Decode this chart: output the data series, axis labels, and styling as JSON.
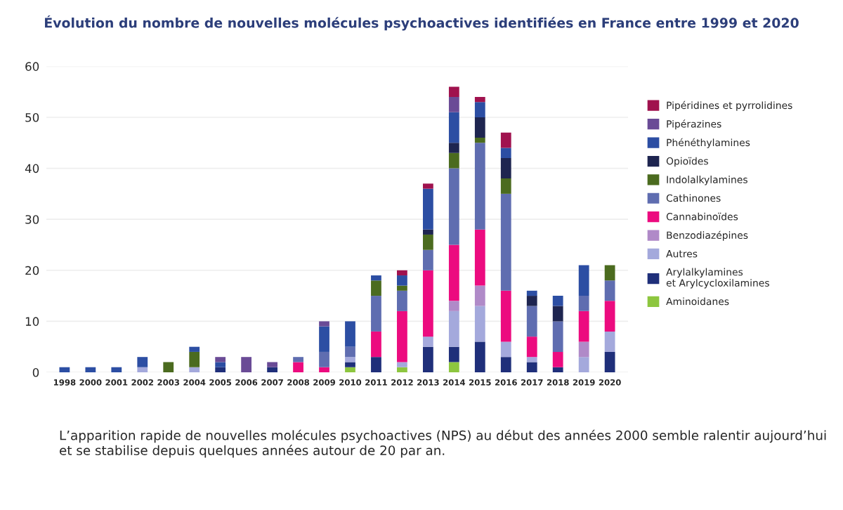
{
  "chart_data": {
    "type": "bar",
    "stacked": true,
    "title": "Évolution du nombre de nouvelles molécules psychoactives identifiées en France entre 1999 et 2020",
    "categories": [
      "1998",
      "2000",
      "2001",
      "2002",
      "2003",
      "2004",
      "2005",
      "2006",
      "2007",
      "2008",
      "2009",
      "2010",
      "2011",
      "2012",
      "2013",
      "2014",
      "2015",
      "2016",
      "2017",
      "2018",
      "2019",
      "2020"
    ],
    "series": [
      {
        "name": "Aminoidanes",
        "color": "#8dc63f",
        "values": [
          0,
          0,
          0,
          0,
          0,
          0,
          0,
          0,
          0,
          0,
          0,
          1,
          0,
          1,
          0,
          2,
          0,
          0,
          0,
          0,
          0,
          0
        ]
      },
      {
        "name": "Arylalkylamines\net Arylcycloxilamines",
        "color": "#1f2f7a",
        "values": [
          0,
          0,
          0,
          0,
          0,
          0,
          1,
          0,
          1,
          0,
          0,
          1,
          3,
          0,
          5,
          3,
          6,
          3,
          2,
          1,
          0,
          4
        ]
      },
      {
        "name": "Autres",
        "color": "#a4a9dc",
        "values": [
          0,
          0,
          0,
          1,
          0,
          1,
          0,
          0,
          0,
          0,
          0,
          1,
          0,
          1,
          2,
          7,
          7,
          3,
          1,
          0,
          3,
          4
        ]
      },
      {
        "name": "Benzodiazépines",
        "color": "#b08ac8",
        "values": [
          0,
          0,
          0,
          0,
          0,
          0,
          0,
          0,
          0,
          0,
          0,
          0,
          0,
          0,
          0,
          2,
          4,
          0,
          0,
          0,
          3,
          0
        ]
      },
      {
        "name": "Cannabinoïdes",
        "color": "#ec0b7f",
        "values": [
          0,
          0,
          0,
          0,
          0,
          0,
          0,
          0,
          0,
          2,
          1,
          0,
          5,
          10,
          13,
          11,
          11,
          10,
          4,
          3,
          6,
          6
        ]
      },
      {
        "name": "Cathinones",
        "color": "#5f6db0",
        "values": [
          0,
          0,
          0,
          0,
          0,
          0,
          0,
          0,
          0,
          1,
          3,
          2,
          7,
          4,
          4,
          15,
          17,
          19,
          6,
          6,
          3,
          4
        ]
      },
      {
        "name": "Indolalkylamines",
        "color": "#4b6b1f",
        "values": [
          0,
          0,
          0,
          0,
          2,
          3,
          0,
          0,
          0,
          0,
          0,
          0,
          3,
          1,
          3,
          3,
          1,
          3,
          0,
          0,
          0,
          3
        ]
      },
      {
        "name": "Opioïdes",
        "color": "#1e2550",
        "values": [
          0,
          0,
          0,
          0,
          0,
          0,
          0,
          0,
          0,
          0,
          0,
          0,
          0,
          0,
          1,
          2,
          4,
          4,
          2,
          3,
          0,
          0
        ]
      },
      {
        "name": "Phénéthylamines",
        "color": "#2c4ea3",
        "values": [
          1,
          1,
          1,
          2,
          0,
          1,
          1,
          0,
          0,
          0,
          5,
          5,
          1,
          2,
          8,
          6,
          3,
          2,
          1,
          2,
          6,
          0
        ]
      },
      {
        "name": "Pipérazines",
        "color": "#6a4b96",
        "values": [
          0,
          0,
          0,
          0,
          0,
          0,
          1,
          3,
          1,
          0,
          1,
          0,
          0,
          0,
          0,
          3,
          0,
          0,
          0,
          0,
          0,
          0
        ]
      },
      {
        "name": "Pipéridines et pyrrolidines",
        "color": "#a0124e",
        "values": [
          0,
          0,
          0,
          0,
          0,
          0,
          0,
          0,
          0,
          0,
          0,
          0,
          0,
          1,
          1,
          2,
          1,
          3,
          0,
          0,
          0,
          0
        ]
      }
    ],
    "ylim": [
      0,
      60
    ],
    "yticks": [
      0,
      10,
      20,
      30,
      40,
      50,
      60
    ],
    "grid": "y",
    "legend": "right",
    "annotations": [
      "L’apparition rapide de nouvelles molécules psychoactives (NPS) au début des années 2000 semble ralentir aujourd’hui et se stabilise depuis quelques années autour de 20 par an."
    ]
  }
}
